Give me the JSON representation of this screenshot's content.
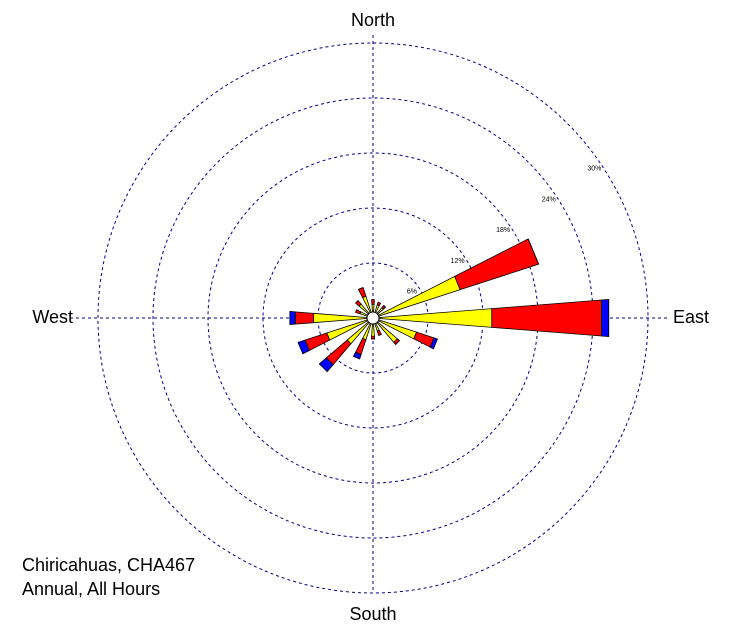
{
  "chart_data": {
    "type": "windrose",
    "categories": [
      "North",
      null,
      null,
      null,
      "East",
      null,
      null,
      null,
      "South",
      null,
      null,
      null,
      "West",
      null,
      null,
      null
    ],
    "series": [
      {
        "color": "#ffff00",
        "values": [
          1.5,
          1.5,
          1.5,
          10,
          13,
          5,
          3.5,
          1.5,
          2,
          2.5,
          3.7,
          5.3,
          6.5,
          1.5,
          2,
          2.5
        ]
      },
      {
        "color": "#ff0000",
        "values": [
          0.5,
          0.3,
          0.3,
          9,
          12,
          2,
          0.3,
          0.5,
          0.3,
          1.7,
          3,
          2.5,
          2,
          0.5,
          0.5,
          1
        ]
      },
      {
        "color": "#0000ff",
        "values": [
          0,
          0,
          0,
          0,
          0.8,
          0.4,
          0,
          0,
          0,
          0.5,
          1,
          0.8,
          0.6,
          0,
          0,
          0
        ]
      }
    ],
    "rlim": [
      0,
      30
    ],
    "rticks": [
      {
        "value": 6,
        "label": "6%"
      },
      {
        "value": 12,
        "label": "12%"
      },
      {
        "value": 18,
        "label": "18%"
      },
      {
        "value": 24,
        "label": "24%"
      },
      {
        "value": 30,
        "label": "30%"
      }
    ],
    "grid": true,
    "grid_color": "#00008b",
    "annotations": [
      "Chiricahuas, CHA467",
      "Annual, All Hours"
    ]
  }
}
